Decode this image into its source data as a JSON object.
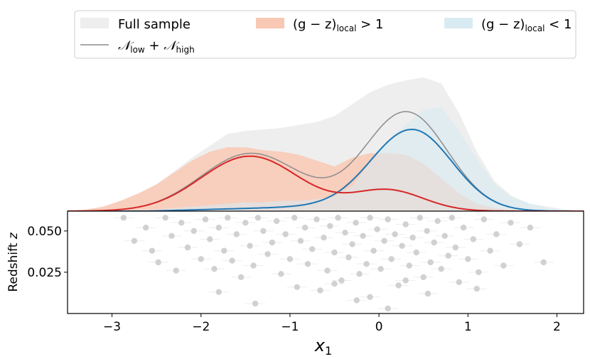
{
  "chart_data": [
    {
      "type": "area",
      "panel": "top",
      "description_series": [
        {
          "name": "Full sample",
          "kind": "filled-histogram",
          "color": "#eeeeee"
        },
        {
          "name": "(g - z)local > 1",
          "kind": "filled-histogram",
          "color": "#f9c8b4"
        },
        {
          "name": "(g - z)local < 1",
          "kind": "filled-histogram",
          "color": "#d9ebf2"
        },
        {
          "name": "Nlow + Nhigh",
          "kind": "line",
          "color": "#8c8c8c"
        },
        {
          "name": "Nlow",
          "kind": "line",
          "color": "#d62728"
        },
        {
          "name": "Nhigh",
          "kind": "line",
          "color": "#1f77b4"
        }
      ],
      "xlim": [
        -3.5,
        2.3
      ],
      "ylim": [
        0,
        1.0
      ],
      "x_eval": [
        -3.5,
        -3.3,
        -3.1,
        -2.9,
        -2.7,
        -2.5,
        -2.3,
        -2.1,
        -1.9,
        -1.7,
        -1.5,
        -1.3,
        -1.1,
        -0.9,
        -0.7,
        -0.5,
        -0.3,
        -0.1,
        0.1,
        0.3,
        0.5,
        0.7,
        0.9,
        1.1,
        1.3,
        1.5,
        1.7,
        1.9,
        2.1,
        2.3
      ],
      "full_sample_hist": [
        0.0,
        0.01,
        0.03,
        0.07,
        0.12,
        0.18,
        0.27,
        0.36,
        0.44,
        0.52,
        0.54,
        0.55,
        0.56,
        0.58,
        0.6,
        0.64,
        0.72,
        0.8,
        0.85,
        0.88,
        0.9,
        0.86,
        0.66,
        0.4,
        0.2,
        0.1,
        0.05,
        0.03,
        0.01,
        0.0
      ],
      "red_hist": [
        0.0,
        0.01,
        0.03,
        0.07,
        0.12,
        0.18,
        0.26,
        0.34,
        0.4,
        0.43,
        0.43,
        0.41,
        0.4,
        0.38,
        0.34,
        0.3,
        0.36,
        0.39,
        0.39,
        0.38,
        0.32,
        0.22,
        0.12,
        0.05,
        0.02,
        0.01,
        0.0,
        0.0,
        0.0,
        0.0
      ],
      "blue_hist": [
        0.0,
        0.0,
        0.0,
        0.0,
        0.0,
        0.01,
        0.02,
        0.03,
        0.04,
        0.05,
        0.06,
        0.06,
        0.07,
        0.07,
        0.08,
        0.1,
        0.17,
        0.33,
        0.48,
        0.58,
        0.68,
        0.7,
        0.54,
        0.35,
        0.18,
        0.09,
        0.05,
        0.02,
        0.01,
        0.0
      ],
      "gauss_low": {
        "mu": -1.45,
        "sigma": 0.55,
        "amp": 0.37
      },
      "gauss_mid": {
        "mu": 0.1,
        "sigma": 0.4,
        "amp": 0.14
      },
      "gauss_high": {
        "mu": 0.37,
        "sigma": 0.45,
        "amp": 0.55
      },
      "base_line": {
        "level": 0.05,
        "x_start": -2.6,
        "x_end": 2.3
      }
    },
    {
      "type": "scatter",
      "panel": "bottom",
      "color": "#cccccc",
      "xlim": [
        -3.5,
        2.3
      ],
      "ylim": [
        0.0,
        0.062
      ],
      "ylabel": "Redshift z",
      "xlabel": "x1",
      "yticks": [
        0.025,
        0.05
      ],
      "ytick_labels": [
        "0.025",
        "0.050"
      ],
      "xticks": [
        -3,
        -2,
        -1,
        0,
        1,
        2
      ],
      "xtick_labels": [
        "−3",
        "−2",
        "−1",
        "0",
        "1",
        "2"
      ],
      "points": [
        [
          -2.87,
          0.058
        ],
        [
          -2.75,
          0.044
        ],
        [
          -2.62,
          0.052
        ],
        [
          -2.55,
          0.038
        ],
        [
          -2.48,
          0.031
        ],
        [
          -2.4,
          0.058
        ],
        [
          -2.33,
          0.047
        ],
        [
          -2.28,
          0.026
        ],
        [
          -2.22,
          0.055
        ],
        [
          -2.15,
          0.04
        ],
        [
          -2.08,
          0.05
        ],
        [
          -2.0,
          0.033
        ],
        [
          -1.95,
          0.057
        ],
        [
          -1.9,
          0.045
        ],
        [
          -1.85,
          0.027
        ],
        [
          -1.8,
          0.052
        ],
        [
          -1.74,
          0.038
        ],
        [
          -1.7,
          0.058
        ],
        [
          -1.65,
          0.032
        ],
        [
          -1.6,
          0.048
        ],
        [
          -1.55,
          0.022
        ],
        [
          -1.5,
          0.055
        ],
        [
          -1.45,
          0.041
        ],
        [
          -1.41,
          0.029
        ],
        [
          -1.36,
          0.058
        ],
        [
          -1.3,
          0.05
        ],
        [
          -1.25,
          0.036
        ],
        [
          -1.2,
          0.043
        ],
        [
          -1.15,
          0.056
        ],
        [
          -1.1,
          0.024
        ],
        [
          -1.05,
          0.048
        ],
        [
          -1.0,
          0.033
        ],
        [
          -0.95,
          0.058
        ],
        [
          -0.92,
          0.016
        ],
        [
          -0.88,
          0.044
        ],
        [
          -0.83,
          0.052
        ],
        [
          -0.8,
          0.03
        ],
        [
          -0.75,
          0.039
        ],
        [
          -0.7,
          0.057
        ],
        [
          -0.66,
          0.014
        ],
        [
          -0.62,
          0.046
        ],
        [
          -0.58,
          0.026
        ],
        [
          -0.55,
          0.053
        ],
        [
          -0.5,
          0.037
        ],
        [
          -0.46,
          0.058
        ],
        [
          -0.42,
          0.02
        ],
        [
          -0.38,
          0.049
        ],
        [
          -0.34,
          0.034
        ],
        [
          -0.3,
          0.042
        ],
        [
          -0.26,
          0.055
        ],
        [
          -0.22,
          0.024
        ],
        [
          -0.18,
          0.047
        ],
        [
          -0.14,
          0.03
        ],
        [
          -0.1,
          0.058
        ],
        [
          -0.06,
          0.038
        ],
        [
          -0.02,
          0.051
        ],
        [
          0.02,
          0.027
        ],
        [
          0.06,
          0.044
        ],
        [
          0.1,
          0.057
        ],
        [
          0.14,
          0.033
        ],
        [
          0.18,
          0.048
        ],
        [
          0.22,
          0.017
        ],
        [
          0.26,
          0.041
        ],
        [
          0.3,
          0.054
        ],
        [
          0.34,
          0.029
        ],
        [
          0.38,
          0.046
        ],
        [
          0.42,
          0.037
        ],
        [
          0.46,
          0.058
        ],
        [
          0.5,
          0.022
        ],
        [
          0.54,
          0.05
        ],
        [
          0.58,
          0.031
        ],
        [
          0.62,
          0.043
        ],
        [
          0.66,
          0.056
        ],
        [
          0.7,
          0.027
        ],
        [
          0.74,
          0.047
        ],
        [
          0.78,
          0.035
        ],
        [
          0.82,
          0.058
        ],
        [
          0.86,
          0.04
        ],
        [
          0.9,
          0.019
        ],
        [
          0.95,
          0.052
        ],
        [
          1.0,
          0.033
        ],
        [
          1.06,
          0.045
        ],
        [
          1.12,
          0.025
        ],
        [
          1.18,
          0.057
        ],
        [
          1.25,
          0.038
        ],
        [
          1.32,
          0.048
        ],
        [
          1.4,
          0.029
        ],
        [
          1.48,
          0.055
        ],
        [
          1.58,
          0.042
        ],
        [
          1.7,
          0.052
        ],
        [
          1.85,
          0.031
        ],
        [
          -0.25,
          0.008
        ],
        [
          0.1,
          0.003
        ],
        [
          -1.39,
          0.006
        ],
        [
          -0.1,
          0.01
        ],
        [
          0.55,
          0.012
        ],
        [
          -0.5,
          0.018
        ],
        [
          1.1,
          0.015
        ],
        [
          -1.8,
          0.013
        ],
        [
          0.3,
          0.02
        ]
      ]
    }
  ],
  "legend": {
    "full_sample": "Full sample",
    "red_label_main": "(g − z)",
    "red_label_sub": "local",
    "red_label_tail": " > 1",
    "blue_label_main": "(g − z)",
    "blue_label_sub": "local",
    "blue_label_tail": " < 1",
    "sum_label_a": "𝒩",
    "sum_label_a_sub": "low",
    "sum_label_plus": " + ",
    "sum_label_b": "𝒩",
    "sum_label_b_sub": "high",
    "colors": {
      "full_sample": "#eeeeee",
      "red": "#f9c8b4",
      "blue": "#d9ebf2",
      "sum_line": "#8c8c8c"
    }
  },
  "axes": {
    "ylabel_text": "Redshift ",
    "ylabel_var": "z",
    "xlabel_var": "x",
    "xlabel_sub": "1"
  }
}
